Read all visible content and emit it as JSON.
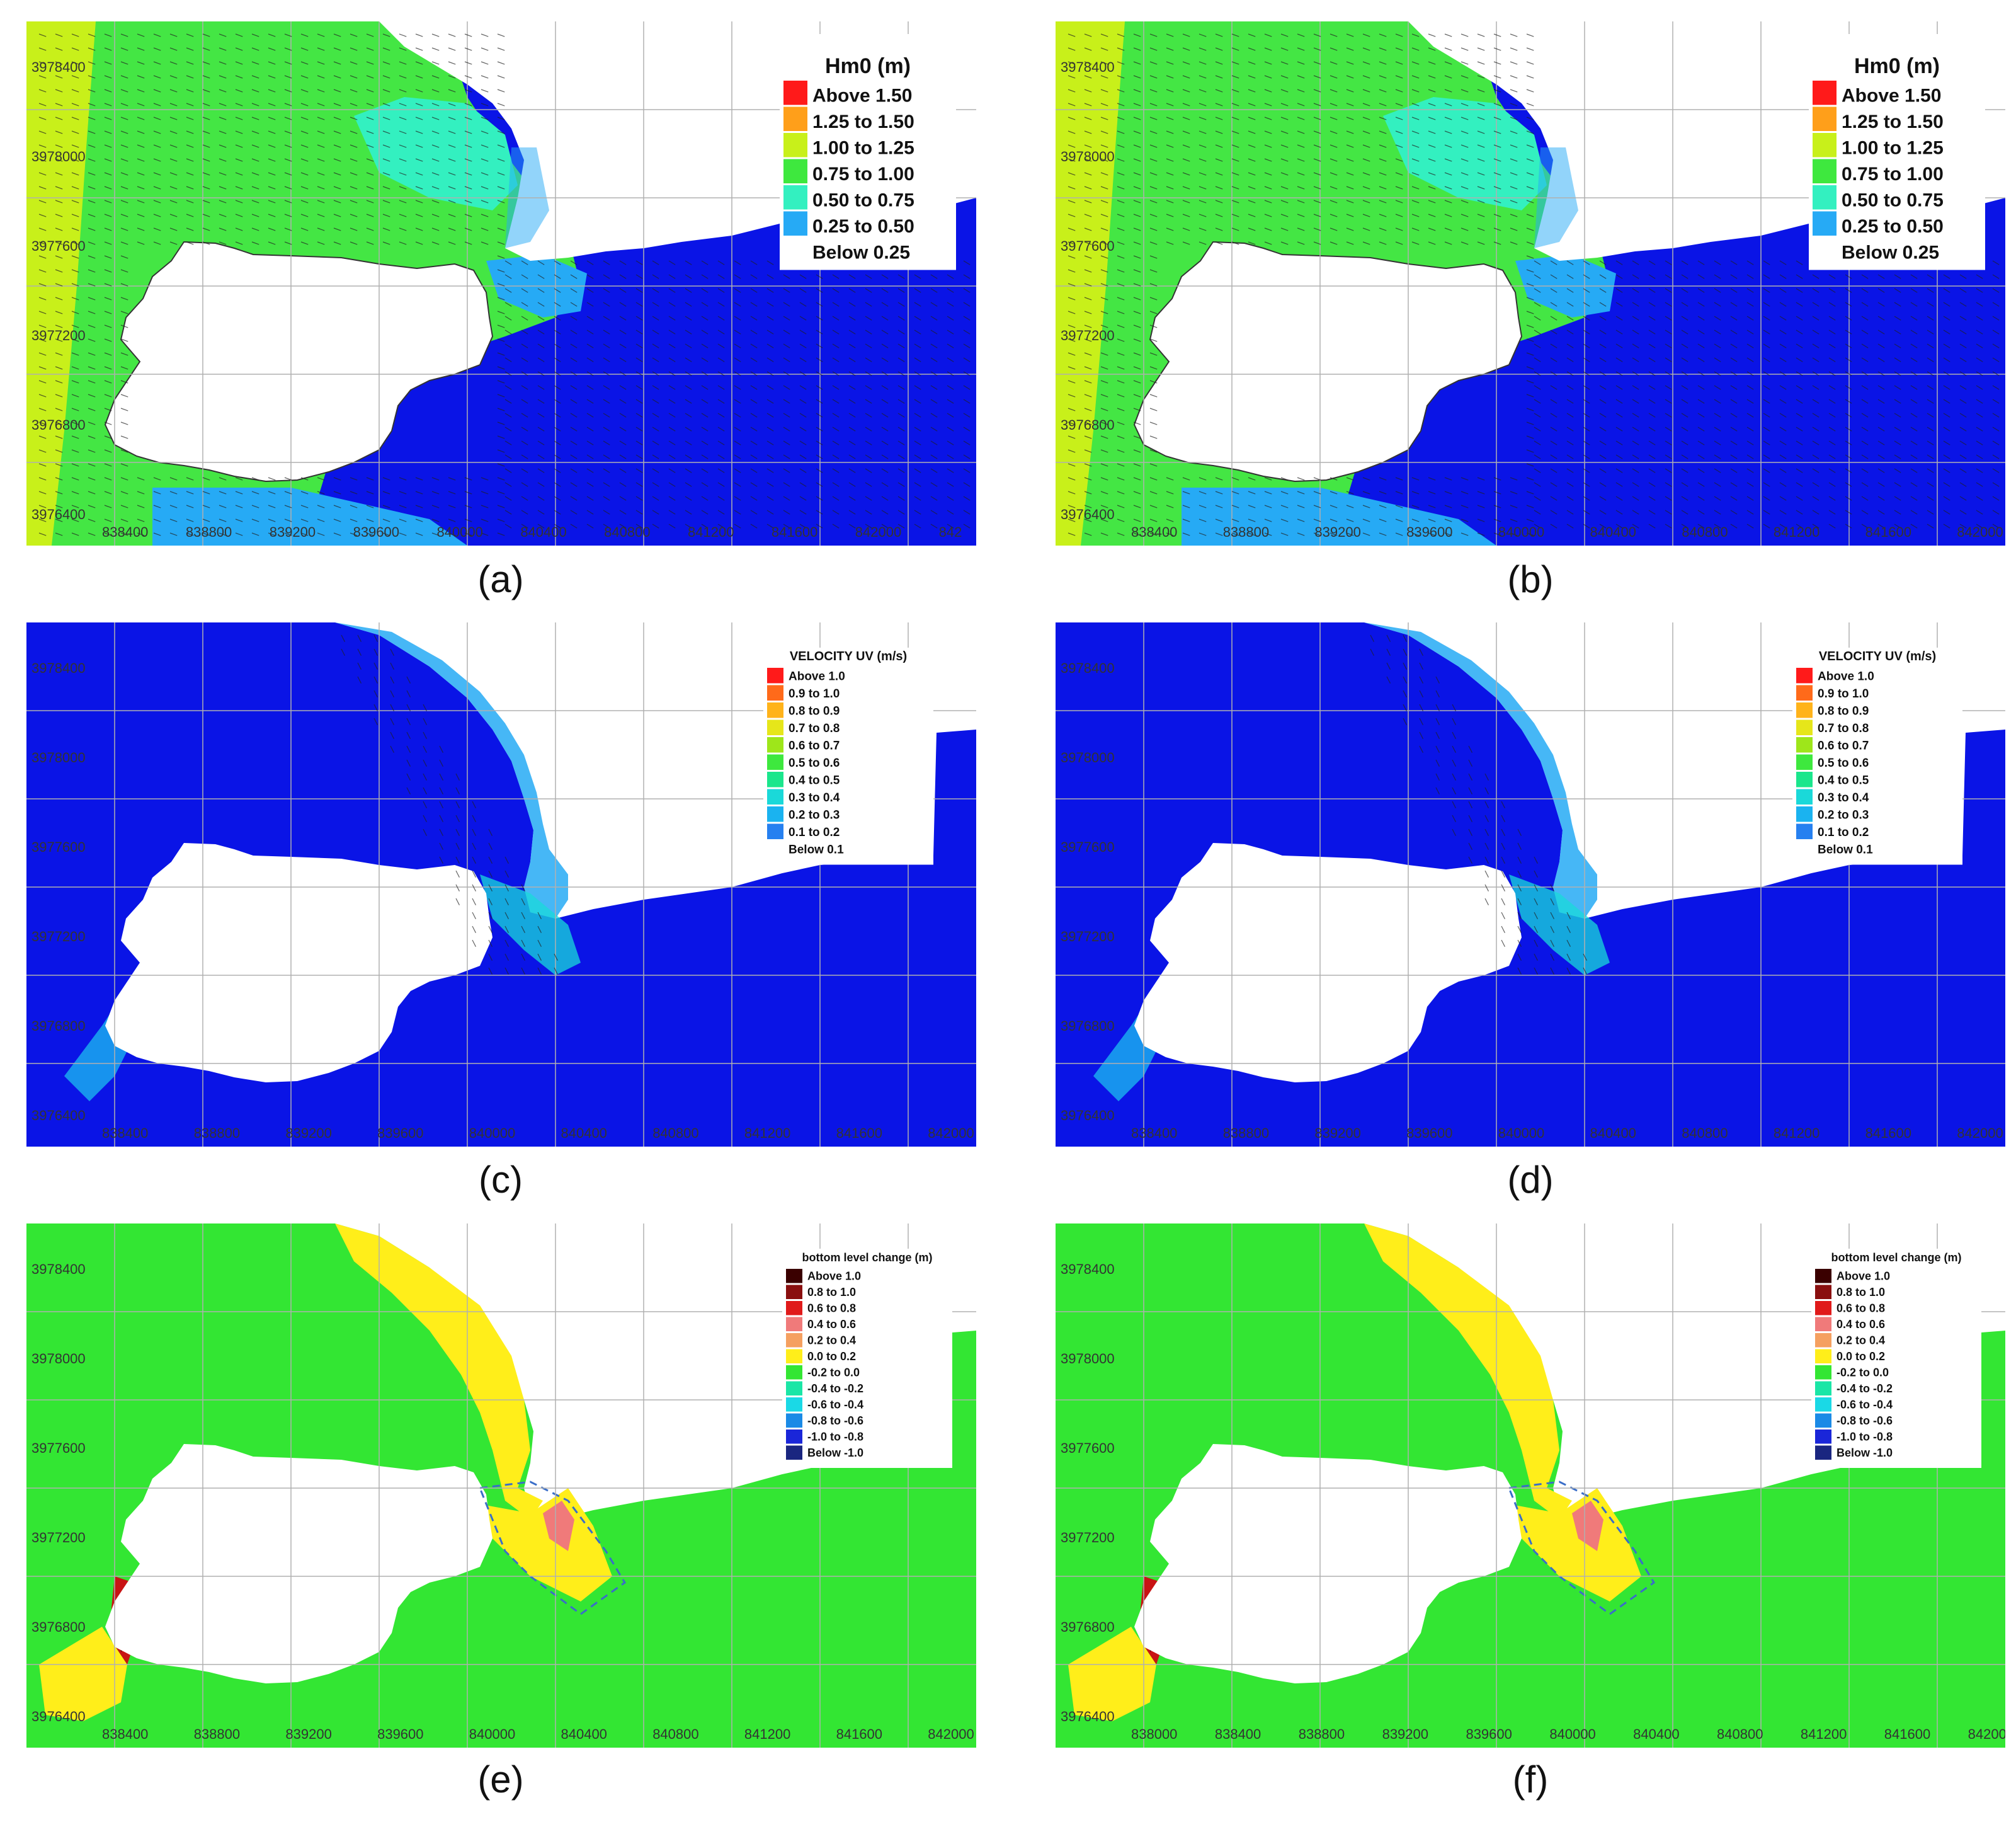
{
  "panels": [
    {
      "id": "a",
      "caption": "(a)",
      "variant": "wave",
      "ylabels_shown": true,
      "xticks": [
        "838400",
        "838800",
        "839200",
        "839600",
        "840000",
        "840400",
        "840800",
        "841200",
        "841600",
        "842000",
        "842"
      ],
      "yticks": [
        "3978400",
        "3978000",
        "3977600",
        "3977200",
        "3976800",
        "3976400"
      ],
      "legend": {
        "title": "Hm0 (m)",
        "entries": [
          {
            "label": "Above 1.50",
            "color": "#ff1a1a"
          },
          {
            "label": "1.25 to 1.50",
            "color": "#ff9f1a"
          },
          {
            "label": "1.00 to 1.25",
            "color": "#c8f01a"
          },
          {
            "label": "0.75 to 1.00",
            "color": "#3ee83e"
          },
          {
            "label": "0.50 to 0.75",
            "color": "#33f0c0"
          },
          {
            "label": "0.25 to 0.50",
            "color": "#26aaf5"
          },
          {
            "label": "Below 0.25",
            "color": "#ffffff"
          }
        ]
      }
    },
    {
      "id": "b",
      "caption": "(b)",
      "variant": "wave",
      "ylabels_shown": true,
      "xticks": [
        "838400",
        "838800",
        "839200",
        "839600",
        "840000",
        "840400",
        "840800",
        "841200",
        "841600",
        "842000"
      ],
      "yticks": [
        "3978400",
        "3978000",
        "3977600",
        "3977200",
        "3976800",
        "3976400"
      ],
      "legend": {
        "title": "Hm0 (m)",
        "entries": [
          {
            "label": "Above 1.50",
            "color": "#ff1a1a"
          },
          {
            "label": "1.25 to 1.50",
            "color": "#ff9f1a"
          },
          {
            "label": "1.00 to 1.25",
            "color": "#c8f01a"
          },
          {
            "label": "0.75 to 1.00",
            "color": "#3ee83e"
          },
          {
            "label": "0.50 to 0.75",
            "color": "#33f0c0"
          },
          {
            "label": "0.25 to 0.50",
            "color": "#26aaf5"
          },
          {
            "label": "Below 0.25",
            "color": "#ffffff"
          }
        ]
      }
    },
    {
      "id": "c",
      "caption": "(c)",
      "variant": "velocity",
      "xticks": [
        "838400",
        "838800",
        "839200",
        "839600",
        "840000",
        "840400",
        "840800",
        "841200",
        "841600",
        "842000"
      ],
      "yticks": [
        "3978400",
        "3978000",
        "3977600",
        "3977200",
        "3976800",
        "3976400"
      ],
      "legend": {
        "title": "VELOCITY UV (m/s)",
        "entries": [
          {
            "label": "Above 1.0",
            "color": "#ff1a1a"
          },
          {
            "label": "0.9 to 1.0",
            "color": "#ff6a1a"
          },
          {
            "label": "0.8 to 0.9",
            "color": "#ffb31a"
          },
          {
            "label": "0.7 to 0.8",
            "color": "#e6e61a"
          },
          {
            "label": "0.6 to 0.7",
            "color": "#9ee61a"
          },
          {
            "label": "0.5 to 0.6",
            "color": "#3ee83e"
          },
          {
            "label": "0.4 to 0.5",
            "color": "#1ae68c"
          },
          {
            "label": "0.3 to 0.4",
            "color": "#1ad9d9"
          },
          {
            "label": "0.2 to 0.3",
            "color": "#1ab3f0"
          },
          {
            "label": "0.1 to 0.2",
            "color": "#2680f0"
          },
          {
            "label": "Below 0.1",
            "color": "#ffffff"
          }
        ]
      }
    },
    {
      "id": "d",
      "caption": "(d)",
      "variant": "velocity",
      "xticks": [
        "838400",
        "838800",
        "839200",
        "839600",
        "840000",
        "840400",
        "840800",
        "841200",
        "841600",
        "842000"
      ],
      "yticks": [
        "3978400",
        "3978000",
        "3977600",
        "3977200",
        "3976800",
        "3976400"
      ],
      "legend": {
        "title": "VELOCITY UV (m/s)",
        "entries": [
          {
            "label": "Above 1.0",
            "color": "#ff1a1a"
          },
          {
            "label": "0.9 to 1.0",
            "color": "#ff6a1a"
          },
          {
            "label": "0.8 to 0.9",
            "color": "#ffb31a"
          },
          {
            "label": "0.7 to 0.8",
            "color": "#e6e61a"
          },
          {
            "label": "0.6 to 0.7",
            "color": "#9ee61a"
          },
          {
            "label": "0.5 to 0.6",
            "color": "#3ee83e"
          },
          {
            "label": "0.4 to 0.5",
            "color": "#1ae68c"
          },
          {
            "label": "0.3 to 0.4",
            "color": "#1ad9d9"
          },
          {
            "label": "0.2 to 0.3",
            "color": "#1ab3f0"
          },
          {
            "label": "0.1 to 0.2",
            "color": "#2680f0"
          },
          {
            "label": "Below 0.1",
            "color": "#ffffff"
          }
        ]
      }
    },
    {
      "id": "e",
      "caption": "(e)",
      "variant": "bed",
      "xticks": [
        "838400",
        "838800",
        "839200",
        "839600",
        "840000",
        "840400",
        "840800",
        "841200",
        "841600",
        "842000"
      ],
      "yticks": [
        "3978400",
        "3978000",
        "3977600",
        "3977200",
        "3976800",
        "3976400"
      ],
      "legend": {
        "title": "bottom level change (m)",
        "entries": [
          {
            "label": "Above 1.0",
            "color": "#3a0000"
          },
          {
            "label": "0.8 to 1.0",
            "color": "#8a0f0f"
          },
          {
            "label": "0.6 to 0.8",
            "color": "#e01a1a"
          },
          {
            "label": "0.4 to 0.6",
            "color": "#f07a7a"
          },
          {
            "label": "0.2 to 0.4",
            "color": "#f5a060"
          },
          {
            "label": "0.0 to 0.2",
            "color": "#ffee1a"
          },
          {
            "label": "-0.2 to 0.0",
            "color": "#33e633"
          },
          {
            "label": "-0.4 to -0.2",
            "color": "#1ae6a6"
          },
          {
            "label": "-0.6 to -0.4",
            "color": "#1ad9e6"
          },
          {
            "label": "-0.8 to -0.6",
            "color": "#1a8ae6"
          },
          {
            "label": "-1.0 to -0.8",
            "color": "#1a26d9"
          },
          {
            "label": "Below -1.0",
            "color": "#1a2680"
          }
        ]
      }
    },
    {
      "id": "f",
      "caption": "(f)",
      "variant": "bed",
      "xticks": [
        "838000",
        "838400",
        "838800",
        "839200",
        "839600",
        "840000",
        "840400",
        "840800",
        "841200",
        "841600",
        "84200"
      ],
      "yticks": [
        "3978400",
        "3978000",
        "3977600",
        "3977200",
        "3976800",
        "3976400"
      ],
      "legend": {
        "title": "bottom level change (m)",
        "entries": [
          {
            "label": "Above 1.0",
            "color": "#3a0000"
          },
          {
            "label": "0.8 to 1.0",
            "color": "#8a0f0f"
          },
          {
            "label": "0.6 to 0.8",
            "color": "#e01a1a"
          },
          {
            "label": "0.4 to 0.6",
            "color": "#f07a7a"
          },
          {
            "label": "0.2 to 0.4",
            "color": "#f5a060"
          },
          {
            "label": "0.0 to 0.2",
            "color": "#ffee1a"
          },
          {
            "label": "-0.2 to 0.0",
            "color": "#33e633"
          },
          {
            "label": "-0.4 to -0.2",
            "color": "#1ae6a6"
          },
          {
            "label": "-0.6 to -0.4",
            "color": "#1ad9e6"
          },
          {
            "label": "-0.8 to -0.6",
            "color": "#1a8ae6"
          },
          {
            "label": "-1.0 to -0.8",
            "color": "#1a26d9"
          },
          {
            "label": "Below -1.0",
            "color": "#1a2680"
          }
        ]
      }
    }
  ],
  "colors": {
    "deep_blue": "#0a14e6",
    "wave_green": "#44e644",
    "wave_lime": "#c8f01a",
    "wave_cyan": "#33f0c0",
    "wave_sky": "#26aaf5",
    "bed_green": "#33e633",
    "bed_yellow": "#ffee1a",
    "bed_salmon": "#f07a7a",
    "bed_red": "#c81414",
    "bed_dark": "#3a0000",
    "arrow": "#222222",
    "grid": "#b0b0b0",
    "dashed_outline": "#3a6ec8"
  }
}
